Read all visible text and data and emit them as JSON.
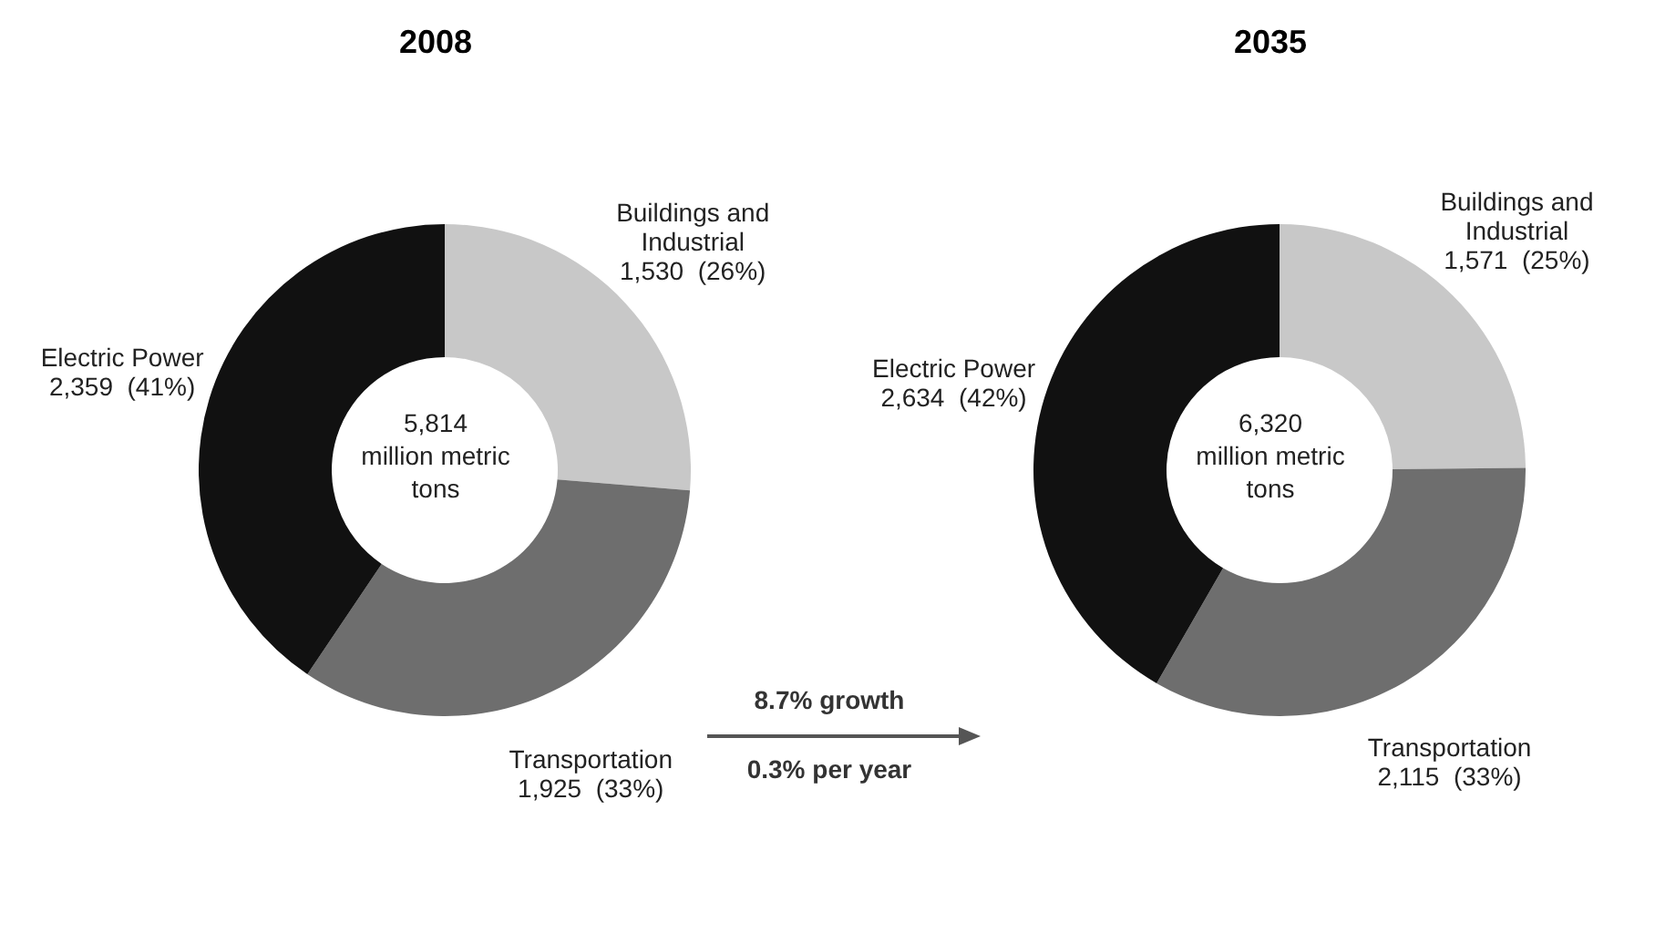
{
  "chart_data": [
    {
      "type": "donut",
      "title": "2008",
      "categories": [
        "Buildings and Industrial",
        "Transportation",
        "Electric Power"
      ],
      "values": [
        1530,
        1925,
        2359
      ],
      "colors": [
        "#c8c8c8",
        "#6e6e6e",
        "#111111"
      ],
      "value_labels": [
        "1,530  (26%)",
        "1,925  (33%)",
        "2,359  (41%)"
      ],
      "annotations": [
        "5,814 million metric tons"
      ]
    },
    {
      "type": "donut",
      "title": "2035",
      "categories": [
        "Buildings and Industrial",
        "Transportation",
        "Electric Power"
      ],
      "values": [
        1571,
        2115,
        2634
      ],
      "colors": [
        "#c8c8c8",
        "#6e6e6e",
        "#111111"
      ],
      "value_labels": [
        "1,571  (25%)",
        "2,115  (33%)",
        "2,634  (42%)"
      ],
      "annotations": [
        "6,320 million metric tons",
        "8.7% growth",
        "0.3% per year"
      ]
    }
  ]
}
